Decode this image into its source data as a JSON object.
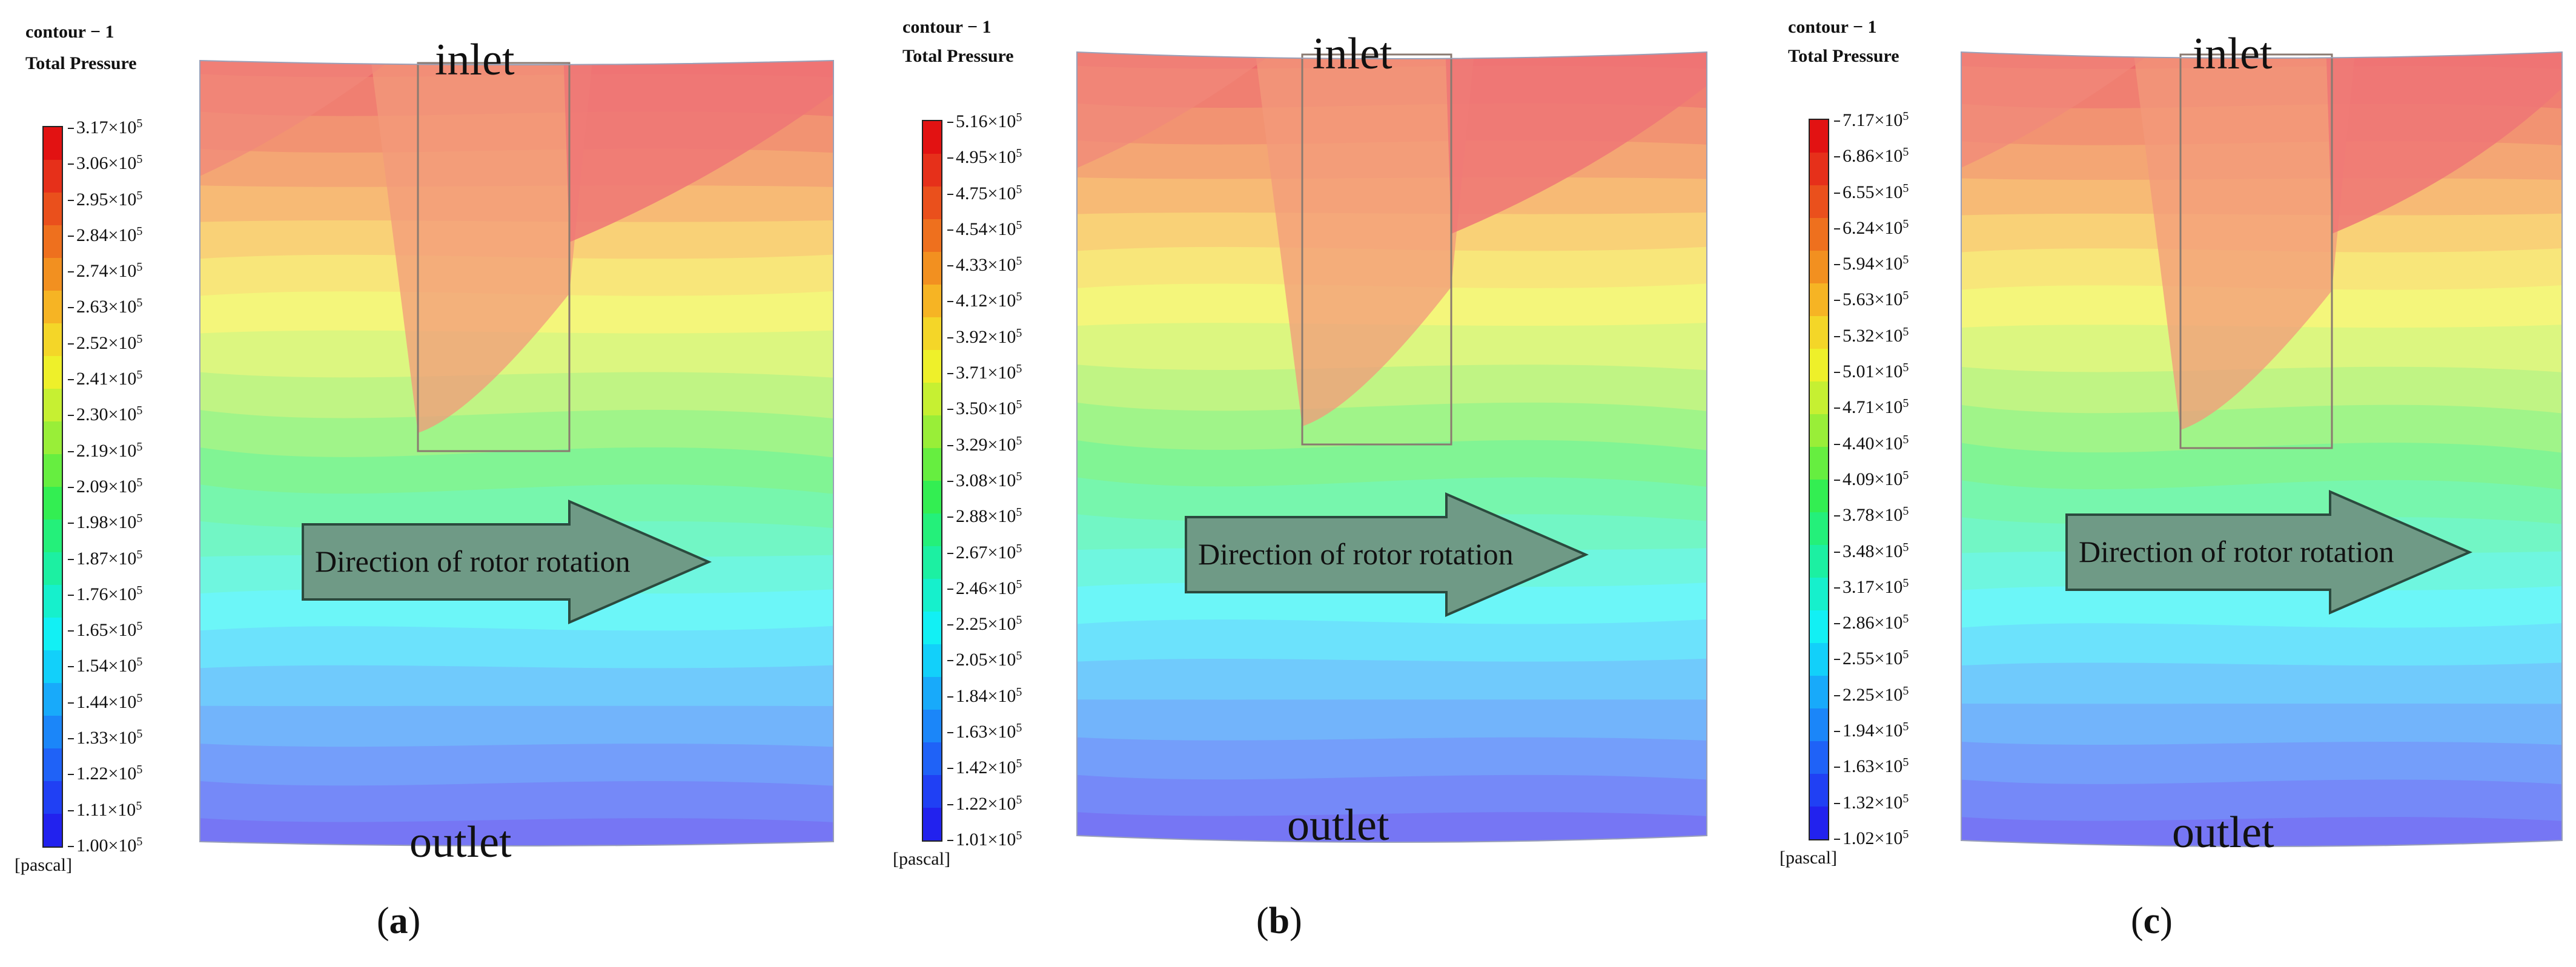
{
  "header_line1": "contour − 1",
  "header_line2": "Total Pressure",
  "unit": "[pascal]",
  "inlet_label": "inlet",
  "outlet_label": "outlet",
  "arrow_label": "Direction of rotor rotation",
  "colors": {
    "scale": [
      "#2222ee",
      "#2040f4",
      "#1f62f7",
      "#1b86f9",
      "#18aafa",
      "#12d0fa",
      "#12f0f4",
      "#16f0cc",
      "#1cf0a2",
      "#24f07a",
      "#33ee52",
      "#66ee40",
      "#99ee38",
      "#c6f032",
      "#eef02a",
      "#f4d628",
      "#f6b424",
      "#f29020",
      "#ee701e",
      "#ea501c",
      "#e6301a",
      "#e21212"
    ],
    "arrow_fill": "#6f9a86",
    "arrow_stroke": "#2b4a3e"
  },
  "panels": [
    {
      "caption_letter": "a",
      "ticks": [
        {
          "m": "3.17",
          "e": "5"
        },
        {
          "m": "3.06",
          "e": "5"
        },
        {
          "m": "2.95",
          "e": "5"
        },
        {
          "m": "2.84",
          "e": "5"
        },
        {
          "m": "2.74",
          "e": "5"
        },
        {
          "m": "2.63",
          "e": "5"
        },
        {
          "m": "2.52",
          "e": "5"
        },
        {
          "m": "2.41",
          "e": "5"
        },
        {
          "m": "2.30",
          "e": "5"
        },
        {
          "m": "2.19",
          "e": "5"
        },
        {
          "m": "2.09",
          "e": "5"
        },
        {
          "m": "1.98",
          "e": "5"
        },
        {
          "m": "1.87",
          "e": "5"
        },
        {
          "m": "1.76",
          "e": "5"
        },
        {
          "m": "1.65",
          "e": "5"
        },
        {
          "m": "1.54",
          "e": "5"
        },
        {
          "m": "1.44",
          "e": "5"
        },
        {
          "m": "1.33",
          "e": "5"
        },
        {
          "m": "1.22",
          "e": "5"
        },
        {
          "m": "1.11",
          "e": "5"
        },
        {
          "m": "1.00",
          "e": "5"
        }
      ]
    },
    {
      "caption_letter": "b",
      "ticks": [
        {
          "m": "5.16",
          "e": "5"
        },
        {
          "m": "4.95",
          "e": "5"
        },
        {
          "m": "4.75",
          "e": "5"
        },
        {
          "m": "4.54",
          "e": "5"
        },
        {
          "m": "4.33",
          "e": "5"
        },
        {
          "m": "4.12",
          "e": "5"
        },
        {
          "m": "3.92",
          "e": "5"
        },
        {
          "m": "3.71",
          "e": "5"
        },
        {
          "m": "3.50",
          "e": "5"
        },
        {
          "m": "3.29",
          "e": "5"
        },
        {
          "m": "3.08",
          "e": "5"
        },
        {
          "m": "2.88",
          "e": "5"
        },
        {
          "m": "2.67",
          "e": "5"
        },
        {
          "m": "2.46",
          "e": "5"
        },
        {
          "m": "2.25",
          "e": "5"
        },
        {
          "m": "2.05",
          "e": "5"
        },
        {
          "m": "1.84",
          "e": "5"
        },
        {
          "m": "1.63",
          "e": "5"
        },
        {
          "m": "1.42",
          "e": "5"
        },
        {
          "m": "1.22",
          "e": "5"
        },
        {
          "m": "1.01",
          "e": "5"
        }
      ]
    },
    {
      "caption_letter": "c",
      "ticks": [
        {
          "m": "7.17",
          "e": "5"
        },
        {
          "m": "6.86",
          "e": "5"
        },
        {
          "m": "6.55",
          "e": "5"
        },
        {
          "m": "6.24",
          "e": "5"
        },
        {
          "m": "5.94",
          "e": "5"
        },
        {
          "m": "5.63",
          "e": "5"
        },
        {
          "m": "5.32",
          "e": "5"
        },
        {
          "m": "5.01",
          "e": "5"
        },
        {
          "m": "4.71",
          "e": "5"
        },
        {
          "m": "4.40",
          "e": "5"
        },
        {
          "m": "4.09",
          "e": "5"
        },
        {
          "m": "3.78",
          "e": "5"
        },
        {
          "m": "3.48",
          "e": "5"
        },
        {
          "m": "3.17",
          "e": "5"
        },
        {
          "m": "2.86",
          "e": "5"
        },
        {
          "m": "2.55",
          "e": "5"
        },
        {
          "m": "2.25",
          "e": "5"
        },
        {
          "m": "1.94",
          "e": "5"
        },
        {
          "m": "1.63",
          "e": "5"
        },
        {
          "m": "1.32",
          "e": "5"
        },
        {
          "m": "1.02",
          "e": "5"
        }
      ]
    }
  ]
}
